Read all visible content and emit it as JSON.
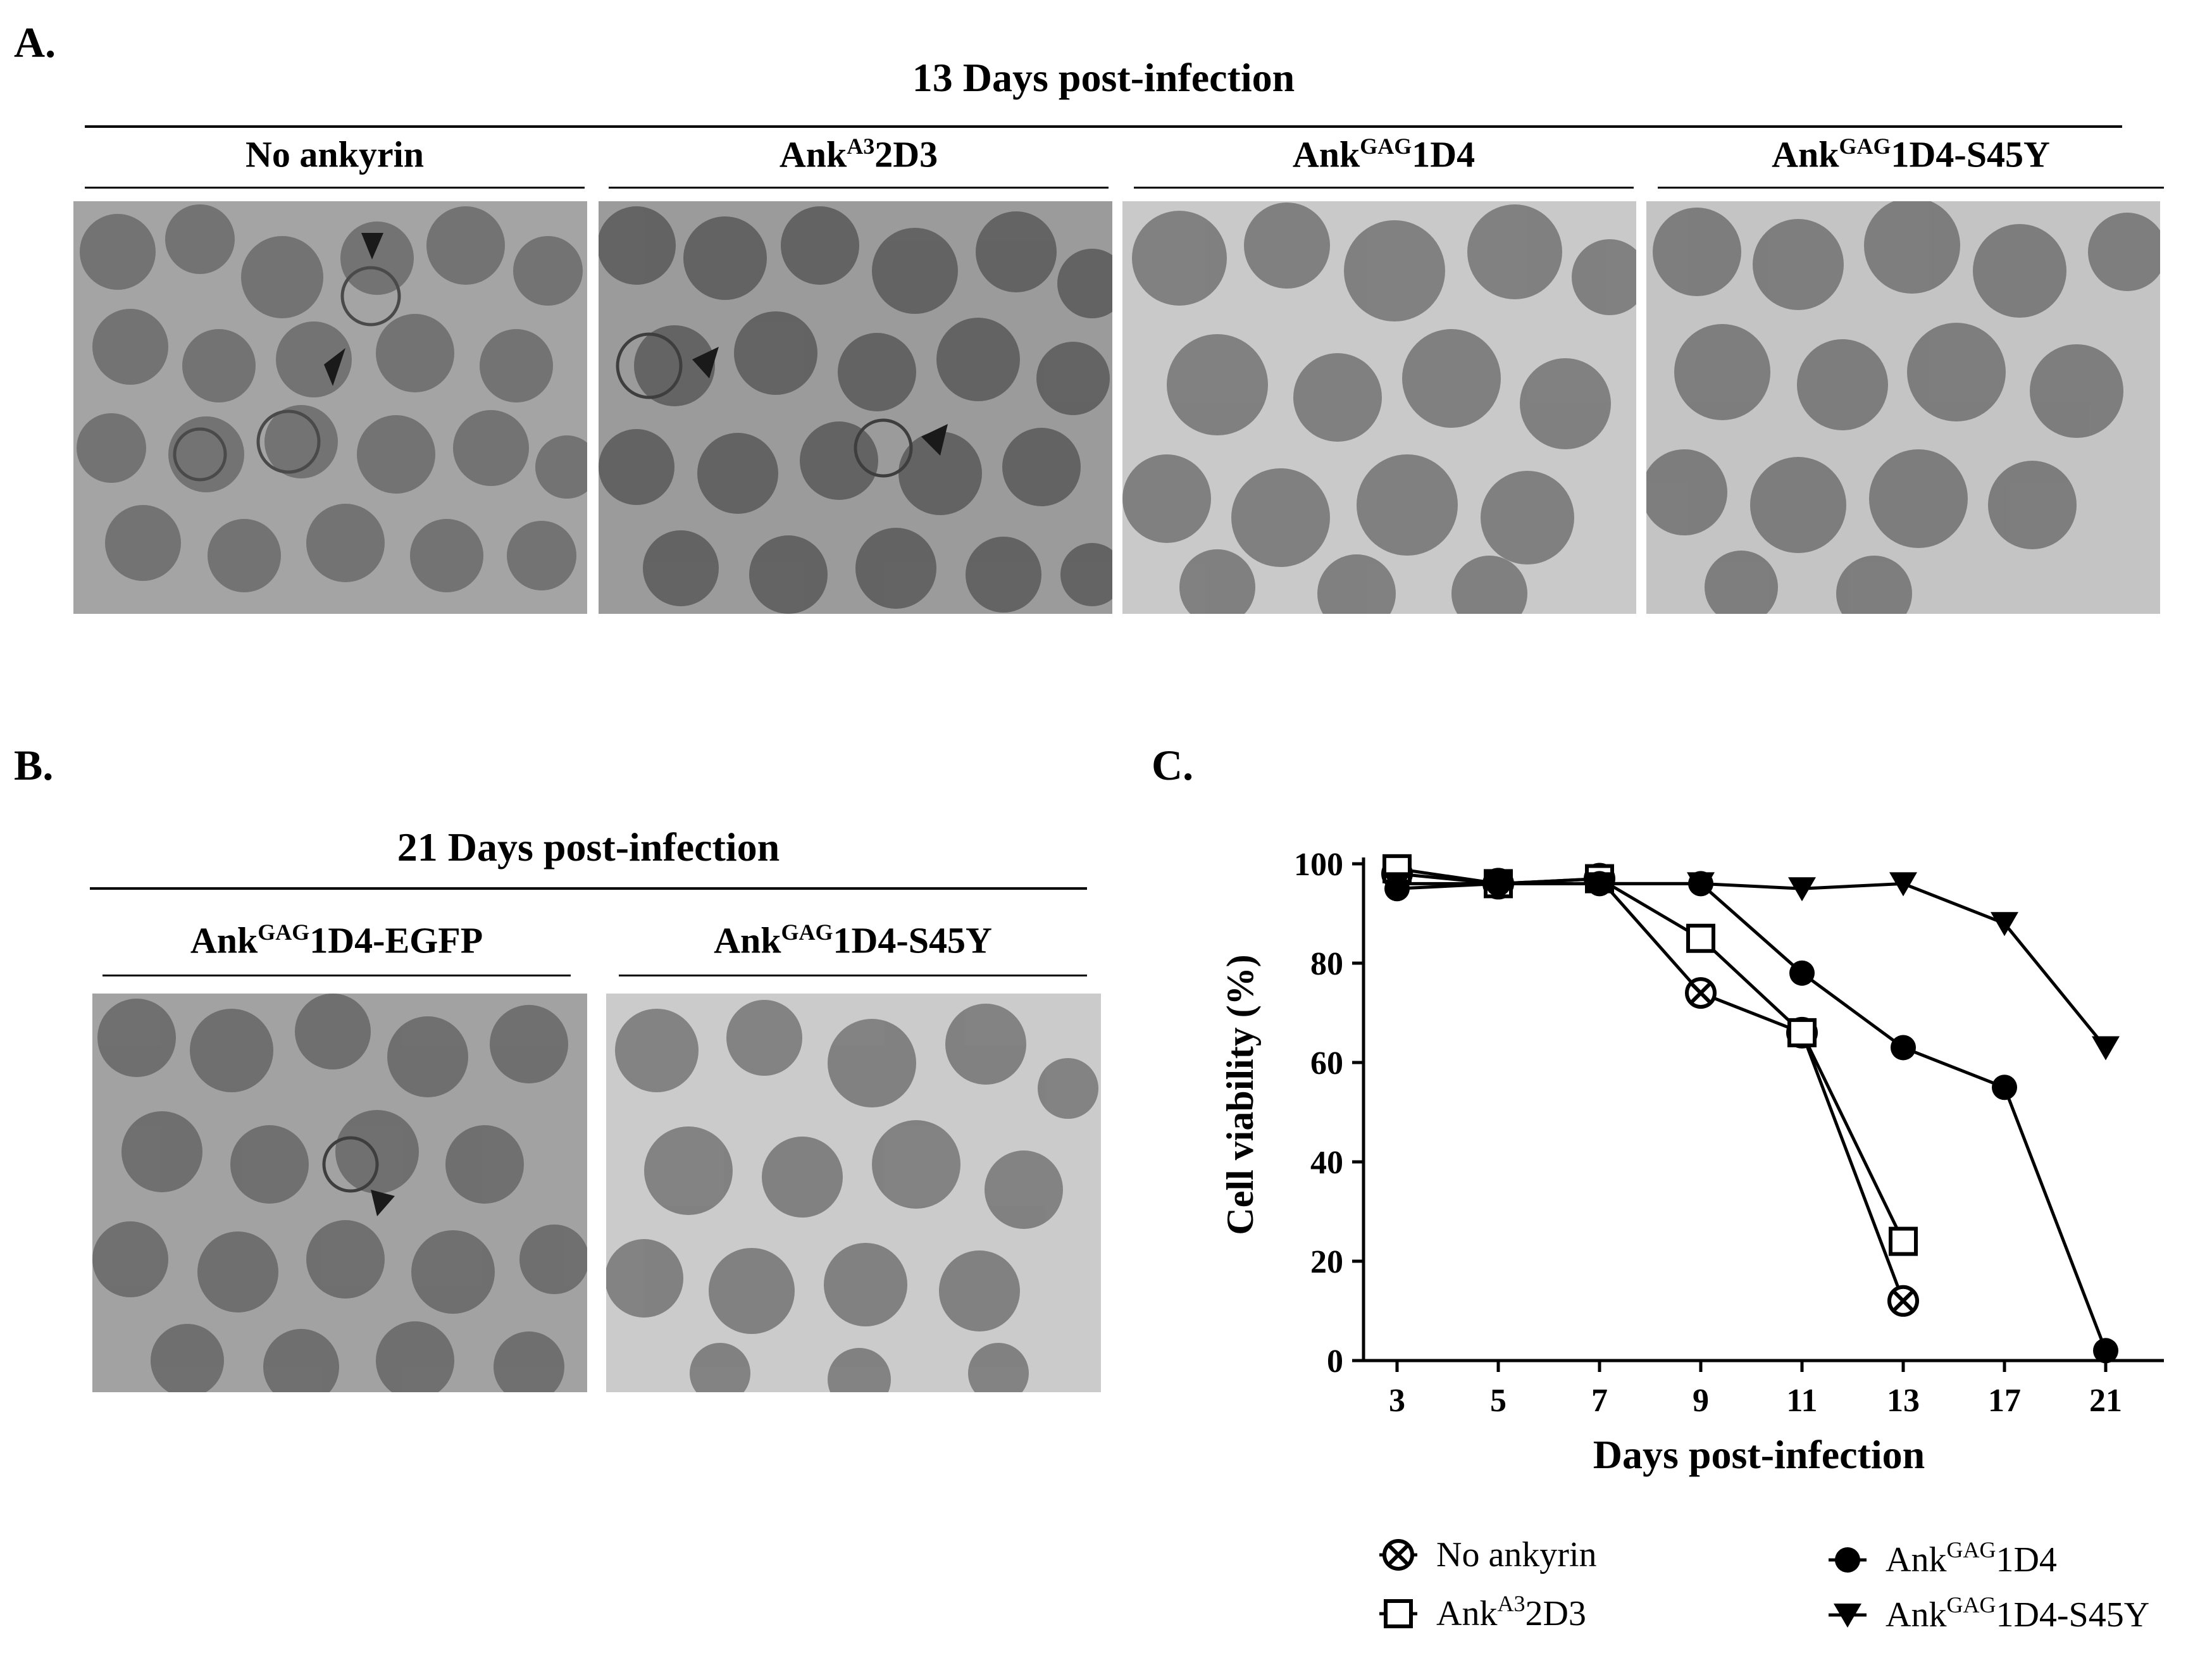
{
  "panel_a": {
    "letter": "A.",
    "heading": "13 Days post-infection",
    "columns": [
      {
        "pre": "No ankyrin",
        "sup": "",
        "post": ""
      },
      {
        "pre": "Ank",
        "sup": "A3",
        "post": "2D3"
      },
      {
        "pre": "Ank",
        "sup": "GAG",
        "post": "1D4"
      },
      {
        "pre": "Ank",
        "sup": "GAG",
        "post": "1D4-S45Y"
      }
    ]
  },
  "panel_b": {
    "letter": "B.",
    "heading": "21 Days post-infection",
    "columns": [
      {
        "pre": "Ank",
        "sup": "GAG",
        "post": "1D4-EGFP"
      },
      {
        "pre": "Ank",
        "sup": "GAG",
        "post": "1D4-S45Y"
      }
    ]
  },
  "panel_c": {
    "letter": "C."
  },
  "chart_data": {
    "type": "line",
    "xlabel": "Days post-infection",
    "ylabel": "Cell viability (%)",
    "categories": [
      "3",
      "5",
      "7",
      "9",
      "11",
      "13",
      "17",
      "21"
    ],
    "ylim": [
      0,
      100
    ],
    "yticks": [
      0,
      20,
      40,
      60,
      80,
      100
    ],
    "series": [
      {
        "name": "No ankyrin",
        "name_pre": "No ankyrin",
        "name_sup": "",
        "name_post": "",
        "marker": "circle-x",
        "values": [
          98,
          96,
          97,
          74,
          66,
          12,
          null,
          null
        ]
      },
      {
        "name": "AnkA32D3",
        "name_pre": "Ank",
        "name_sup": "A3",
        "name_post": "2D3",
        "marker": "square-open",
        "values": [
          99,
          96,
          97,
          85,
          66,
          24,
          null,
          null
        ]
      },
      {
        "name": "AnkGAG1D4",
        "name_pre": "Ank",
        "name_sup": "GAG",
        "name_post": "1D4",
        "marker": "circle-filled",
        "values": [
          95,
          96,
          96,
          96,
          78,
          63,
          55,
          2
        ]
      },
      {
        "name": "AnkGAG1D4-S45Y",
        "name_pre": "Ank",
        "name_sup": "GAG",
        "name_post": "1D4-S45Y",
        "marker": "triangle-down-filled",
        "values": [
          96,
          96,
          96,
          96,
          95,
          96,
          88,
          63
        ]
      }
    ],
    "legend_position": "bottom"
  }
}
